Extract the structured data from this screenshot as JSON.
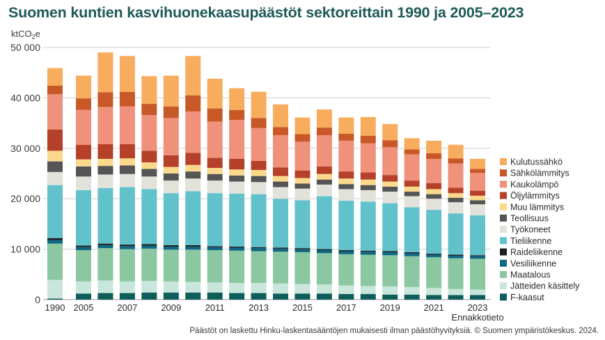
{
  "title": "Suomen kuntien kasvihuonekaasupäästöt sektoreittain 1990 ja 2005–2023",
  "footer": "Päästöt on laskettu Hinku-laskentasääntöjen mukaisesti ilman päästöhyvityksiä. © Suomen ympäristökeskus. 2024.",
  "chart_data": {
    "type": "bar",
    "stacked": true,
    "unit_label": "ktCO₂e",
    "ylim": [
      0,
      50000
    ],
    "y_ticks": [
      "0",
      "10 000",
      "20 000",
      "30 000",
      "40 000",
      "50 000"
    ],
    "grid": true,
    "legend_position": "right",
    "categories": [
      "1990",
      "2005",
      "2006",
      "2007",
      "2008",
      "2009",
      "2010",
      "2011",
      "2012",
      "2013",
      "2014",
      "2015",
      "2016",
      "2017",
      "2018",
      "2019",
      "2020",
      "2021",
      "2022",
      "2023"
    ],
    "x_tick_labels": [
      "1990",
      "2005",
      "",
      "2007",
      "",
      "2009",
      "",
      "2011",
      "",
      "2013",
      "",
      "2015",
      "",
      "2017",
      "",
      "2019",
      "",
      "2021",
      "",
      "2023"
    ],
    "x_annotation": "Ennakkotieto",
    "series": [
      {
        "name": "F-kaasut",
        "color": "#0d5d5a",
        "values": [
          200,
          1200,
          1300,
          1300,
          1400,
          1400,
          1400,
          1400,
          1300,
          1300,
          1200,
          1200,
          1200,
          1100,
          1100,
          1000,
          1000,
          900,
          900,
          900
        ]
      },
      {
        "name": "Jätteiden käsittely",
        "color": "#c8e6db",
        "values": [
          3700,
          2400,
          2500,
          2300,
          2300,
          2200,
          2100,
          2000,
          2000,
          2000,
          2000,
          1900,
          1800,
          1700,
          1600,
          1600,
          1500,
          1400,
          1200,
          1100
        ]
      },
      {
        "name": "Maatalous",
        "color": "#8bc7a0",
        "values": [
          7200,
          6200,
          6400,
          6400,
          6400,
          6300,
          6400,
          6400,
          6400,
          6300,
          6300,
          6300,
          6200,
          6200,
          6200,
          6200,
          6100,
          6100,
          6100,
          6100
        ]
      },
      {
        "name": "Vesiliikenne",
        "color": "#0f6883",
        "values": [
          700,
          600,
          600,
          600,
          600,
          600,
          600,
          600,
          600,
          600,
          600,
          600,
          600,
          600,
          600,
          600,
          600,
          500,
          500,
          500
        ]
      },
      {
        "name": "Raideliikenne",
        "color": "#1e1e1e",
        "values": [
          400,
          300,
          300,
          300,
          300,
          300,
          300,
          200,
          200,
          200,
          200,
          200,
          200,
          200,
          200,
          200,
          200,
          200,
          200,
          200
        ]
      },
      {
        "name": "Tieliikenne",
        "color": "#62c2cc",
        "values": [
          10500,
          11000,
          11000,
          11400,
          10900,
          10300,
          10700,
          10500,
          10500,
          10500,
          9700,
          9500,
          10500,
          9800,
          9700,
          9500,
          8900,
          8700,
          8200,
          7900
        ]
      },
      {
        "name": "Työkoneet",
        "color": "#e2e2da",
        "values": [
          2600,
          2700,
          2700,
          2600,
          2500,
          2500,
          2500,
          2500,
          2400,
          2400,
          2300,
          2300,
          2300,
          2300,
          2300,
          2300,
          2200,
          2200,
          2200,
          2200
        ]
      },
      {
        "name": "Teollisuus",
        "color": "#555555",
        "values": [
          2100,
          2000,
          1700,
          1700,
          1500,
          1400,
          1400,
          1300,
          1200,
          1200,
          1100,
          1000,
          1000,
          1000,
          1000,
          1000,
          900,
          900,
          900,
          800
        ]
      },
      {
        "name": "Muu lämmitys",
        "color": "#fbd98c",
        "values": [
          2100,
          1400,
          1400,
          1400,
          1300,
          1300,
          1300,
          1200,
          1200,
          1200,
          1100,
          1100,
          1100,
          1100,
          1100,
          1000,
          1000,
          1000,
          900,
          900
        ]
      },
      {
        "name": "Öljylämmitys",
        "color": "#b5412a",
        "values": [
          4200,
          2900,
          2900,
          2800,
          2300,
          2300,
          2400,
          2000,
          2100,
          1800,
          1700,
          1500,
          1500,
          1400,
          1400,
          1300,
          1200,
          1200,
          1100,
          1000
        ]
      },
      {
        "name": "Kaukolämpö",
        "color": "#f0917b",
        "values": [
          7000,
          6900,
          7400,
          7500,
          7100,
          7400,
          8200,
          7200,
          7700,
          6500,
          6400,
          5700,
          6200,
          6100,
          5800,
          5500,
          5200,
          4800,
          4800,
          3500
        ]
      },
      {
        "name": "Sähkölämmitys",
        "color": "#c85828",
        "values": [
          1700,
          2300,
          2900,
          2900,
          2200,
          2300,
          3200,
          2600,
          2000,
          2000,
          1600,
          1500,
          1500,
          1400,
          1500,
          1400,
          1000,
          1100,
          1000,
          800
        ]
      },
      {
        "name": "Kulutussähkö",
        "color": "#f8ad5e",
        "values": [
          3500,
          4500,
          7900,
          7100,
          5500,
          6100,
          7800,
          5900,
          4300,
          5200,
          4500,
          3300,
          3600,
          3200,
          3700,
          3200,
          2200,
          2500,
          2700,
          2000
        ]
      }
    ]
  }
}
